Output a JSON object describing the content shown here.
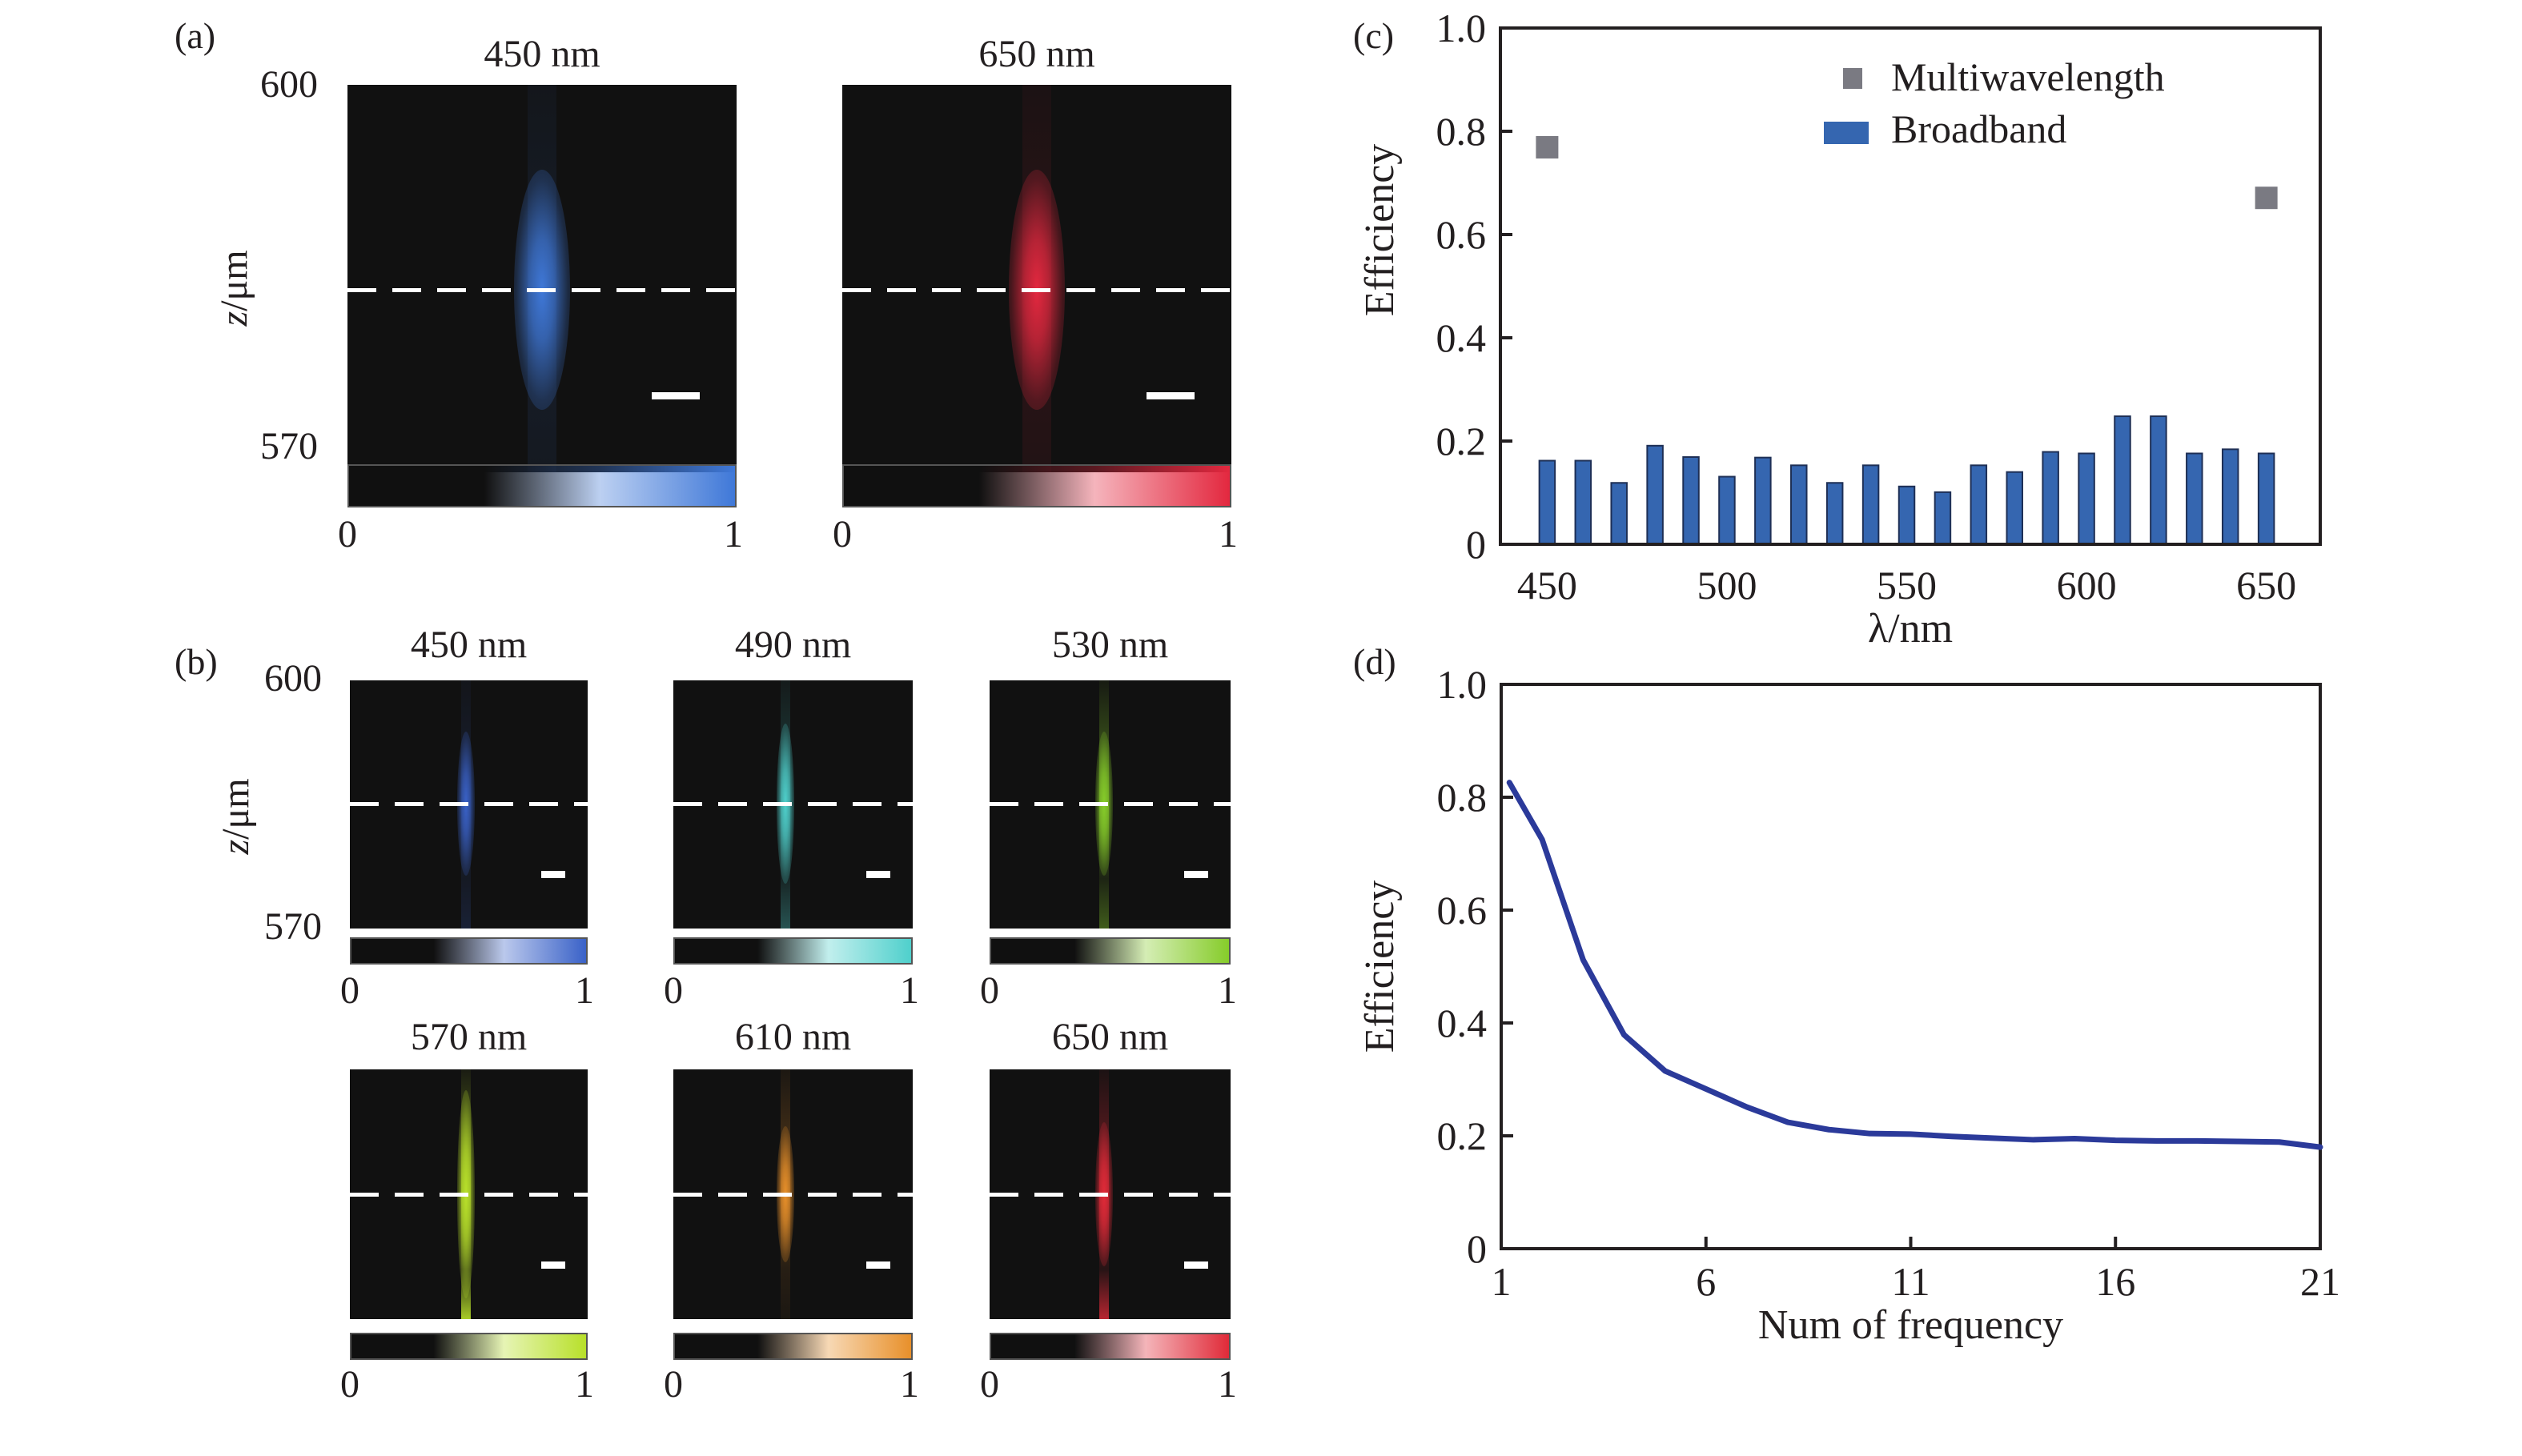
{
  "panels": {
    "a": {
      "label": "(a)",
      "y_label_z": "z",
      "y_label_unit": "/μm",
      "y_top": "600",
      "y_bottom": "570",
      "maps": [
        {
          "title": "450 nm",
          "color": "#3f78d8",
          "cbar_min": "0",
          "cbar_max": "1"
        },
        {
          "title": "650 nm",
          "color": "#e3283f",
          "cbar_min": "0",
          "cbar_max": "1"
        }
      ]
    },
    "b": {
      "label": "(b)",
      "y_label_z": "z",
      "y_label_unit": "/μm",
      "y_top": "600",
      "y_bottom": "570",
      "maps": [
        {
          "title": "450 nm",
          "color": "#3a62c8",
          "cbar_min": "0",
          "cbar_max": "1"
        },
        {
          "title": "490 nm",
          "color": "#4fd0cc",
          "cbar_min": "0",
          "cbar_max": "1"
        },
        {
          "title": "530 nm",
          "color": "#86cc2a",
          "cbar_min": "0",
          "cbar_max": "1"
        },
        {
          "title": "570 nm",
          "color": "#b8e02a",
          "cbar_min": "0",
          "cbar_max": "1"
        },
        {
          "title": "610 nm",
          "color": "#e8902a",
          "cbar_min": "0",
          "cbar_max": "1"
        },
        {
          "title": "650 nm",
          "color": "#e02a38",
          "cbar_min": "0",
          "cbar_max": "1"
        }
      ]
    },
    "c": {
      "label": "(c)"
    },
    "d": {
      "label": "(d)"
    }
  },
  "chart_data": [
    {
      "id": "c",
      "type": "bar",
      "title": "",
      "xlabel": "λ/nm",
      "ylabel": "Efficiency",
      "xlim": [
        437,
        665
      ],
      "ylim": [
        0,
        1.0
      ],
      "x_ticks": [
        450,
        500,
        550,
        600,
        650
      ],
      "y_ticks": [
        0,
        0.2,
        0.4,
        0.6,
        0.8,
        1.0
      ],
      "y_tick_labels": [
        "0",
        "0.2",
        "0.4",
        "0.6",
        "0.8",
        "1.0"
      ],
      "legend": {
        "position": "top-right",
        "entries": [
          "Multiwavelength",
          "Broadband"
        ]
      },
      "series": [
        {
          "name": "Broadband",
          "type": "bar",
          "color": "#3566b0",
          "x": [
            450,
            460,
            470,
            480,
            490,
            500,
            510,
            520,
            530,
            540,
            550,
            560,
            570,
            580,
            590,
            600,
            610,
            620,
            630,
            640,
            650
          ],
          "values": [
            0.162,
            0.162,
            0.119,
            0.191,
            0.169,
            0.131,
            0.168,
            0.153,
            0.119,
            0.153,
            0.112,
            0.101,
            0.153,
            0.14,
            0.179,
            0.176,
            0.248,
            0.248,
            0.176,
            0.184,
            0.176
          ]
        },
        {
          "name": "Multiwavelength",
          "type": "scatter",
          "marker": "square",
          "color": "#7a7a82",
          "x": [
            450,
            650
          ],
          "values": [
            0.769,
            0.671
          ]
        }
      ]
    },
    {
      "id": "d",
      "type": "line",
      "title": "",
      "xlabel": "Num of frequency",
      "ylabel": "Efficiency",
      "xlim": [
        1,
        21
      ],
      "ylim": [
        0,
        1.0
      ],
      "x_ticks": [
        1,
        6,
        11,
        16,
        21
      ],
      "y_ticks": [
        0,
        0.2,
        0.4,
        0.6,
        0.8,
        1.0
      ],
      "y_tick_labels": [
        "0",
        "0.2",
        "0.4",
        "0.6",
        "0.8",
        "1.0"
      ],
      "series": [
        {
          "name": "Efficiency",
          "color": "#2b3a9a",
          "x": [
            1.2,
            2,
            3,
            4,
            5,
            6,
            7,
            8,
            9,
            10,
            11,
            12,
            13,
            14,
            15,
            16,
            17,
            18,
            19,
            20,
            21
          ],
          "values": [
            0.826,
            0.725,
            0.512,
            0.379,
            0.315,
            0.283,
            0.251,
            0.224,
            0.211,
            0.204,
            0.203,
            0.199,
            0.196,
            0.193,
            0.195,
            0.192,
            0.191,
            0.191,
            0.19,
            0.189,
            0.18
          ]
        }
      ]
    }
  ]
}
